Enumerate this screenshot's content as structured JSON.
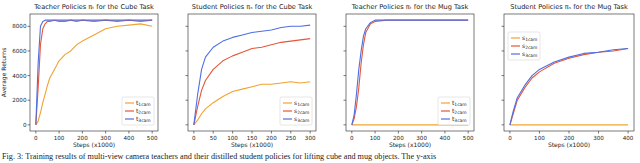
{
  "caption": "Fig. 3: Training results of multi-view camera teachers and their distilled student policies for lifting cube and mug objects. The y-axis",
  "chart_data": [
    {
      "type": "line",
      "title": "Teacher Policies πₜ for the Cube Task",
      "x_label": "Steps (x1000)",
      "y_label": "Average Returns",
      "x": [
        0,
        10,
        20,
        30,
        40,
        50,
        60,
        80,
        100,
        125,
        150,
        175,
        200,
        250,
        300,
        350,
        400,
        450,
        500
      ],
      "series": [
        {
          "name": "t1cam",
          "color": "#f0a330",
          "values": [
            0,
            300,
            1000,
            1800,
            2500,
            3200,
            3800,
            4500,
            5200,
            5700,
            6000,
            6500,
            6800,
            7300,
            7800,
            8000,
            8100,
            8200,
            8000
          ]
        },
        {
          "name": "t2cam",
          "color": "#e4573a",
          "values": [
            0,
            3000,
            6500,
            7800,
            8200,
            8400,
            8400,
            8500,
            8400,
            8400,
            8500,
            8400,
            8500,
            8400,
            8500,
            8400,
            8500,
            8400,
            8500
          ]
        },
        {
          "name": "t3cam",
          "color": "#4f6fe3",
          "values": [
            0,
            5000,
            8000,
            8400,
            8500,
            8500,
            8500,
            8500,
            8500,
            8500,
            8500,
            8500,
            8500,
            8500,
            8500,
            8500,
            8500,
            8500,
            8500
          ]
        }
      ],
      "xlim": [
        -25,
        525
      ],
      "xticks": [
        0,
        100,
        200,
        300,
        400,
        500
      ],
      "ylim": [
        -500,
        9000
      ],
      "yticks": [
        0,
        2000,
        4000,
        6000,
        8000
      ],
      "grid": false,
      "legend": "lower right",
      "tick_labels": true
    },
    {
      "type": "line",
      "title": "Student Policies πₛ for the Cube Task",
      "x_label": "Steps (x1000)",
      "x": [
        0,
        10,
        20,
        30,
        50,
        75,
        100,
        125,
        150,
        175,
        200,
        225,
        250,
        275,
        300
      ],
      "series": [
        {
          "name": "s1cam",
          "color": "#f0a330",
          "values": [
            0,
            400,
            900,
            1300,
            1800,
            2300,
            2700,
            2900,
            3100,
            3300,
            3300,
            3400,
            3500,
            3400,
            3500
          ]
        },
        {
          "name": "s2cam",
          "color": "#e4573a",
          "values": [
            0,
            1500,
            2800,
            3600,
            4500,
            5200,
            5600,
            5900,
            6200,
            6300,
            6500,
            6700,
            6800,
            6900,
            7000
          ]
        },
        {
          "name": "s3cam",
          "color": "#4f6fe3",
          "values": [
            0,
            2500,
            4500,
            5500,
            6300,
            6800,
            7100,
            7300,
            7500,
            7600,
            7700,
            7900,
            8000,
            8000,
            8100
          ]
        }
      ],
      "xlim": [
        -15,
        315
      ],
      "xticks": [
        0,
        50,
        100,
        150,
        200,
        250,
        300
      ],
      "ylim": [
        -500,
        9000
      ],
      "yticks": [
        0,
        2000,
        4000,
        6000,
        8000
      ],
      "grid": false,
      "legend": "lower right",
      "tick_labels": "x"
    },
    {
      "type": "line",
      "title": "Teacher Policies πₜ for the Mug Task",
      "x_label": "Steps (x1000)",
      "x": [
        0,
        10,
        20,
        30,
        40,
        50,
        60,
        80,
        100,
        150,
        200,
        250,
        300,
        350,
        400,
        450,
        500
      ],
      "series": [
        {
          "name": "t1cam",
          "color": "#f0a330",
          "values": [
            0,
            0,
            0,
            0,
            0,
            0,
            0,
            0,
            0,
            0,
            0,
            0,
            0,
            0,
            0,
            0,
            0
          ]
        },
        {
          "name": "t2cam",
          "color": "#e4573a",
          "values": [
            0,
            500,
            1500,
            3000,
            5000,
            6500,
            7500,
            8200,
            8400,
            8500,
            8500,
            8500,
            8500,
            8500,
            8500,
            8500,
            8500
          ]
        },
        {
          "name": "t3cam",
          "color": "#4f6fe3",
          "values": [
            0,
            800,
            2500,
            4500,
            6000,
            7200,
            7800,
            8300,
            8500,
            8500,
            8500,
            8500,
            8500,
            8500,
            8500,
            8500,
            8500
          ]
        }
      ],
      "xlim": [
        -25,
        525
      ],
      "xticks": [
        0,
        100,
        200,
        300,
        400,
        500
      ],
      "ylim": [
        -500,
        9000
      ],
      "yticks": [
        0,
        2000,
        4000,
        6000,
        8000
      ],
      "grid": false,
      "legend": "lower right",
      "tick_labels": "x"
    },
    {
      "type": "line",
      "title": "Student Policies πₛ for the Mug Task",
      "x_label": "Steps (x1000)",
      "x": [
        0,
        10,
        25,
        50,
        75,
        100,
        150,
        200,
        250,
        300,
        350,
        400
      ],
      "series": [
        {
          "name": "s1cam",
          "color": "#f0a330",
          "values": [
            0,
            0,
            0,
            0,
            0,
            0,
            0,
            0,
            0,
            0,
            0,
            0
          ]
        },
        {
          "name": "s2cam",
          "color": "#e4573a",
          "values": [
            0,
            800,
            2000,
            3000,
            3800,
            4300,
            5000,
            5400,
            5700,
            5900,
            6000,
            6200
          ]
        },
        {
          "name": "s3cam",
          "color": "#4f6fe3",
          "values": [
            0,
            1000,
            2200,
            3200,
            4000,
            4500,
            5100,
            5500,
            5800,
            5900,
            6100,
            6200
          ]
        }
      ],
      "xlim": [
        -20,
        420
      ],
      "xticks": [
        0,
        100,
        200,
        300,
        400
      ],
      "ylim": [
        -500,
        9000
      ],
      "yticks": [
        0,
        2000,
        4000,
        6000,
        8000
      ],
      "grid": false,
      "legend": "upper left",
      "tick_labels": "x"
    }
  ]
}
